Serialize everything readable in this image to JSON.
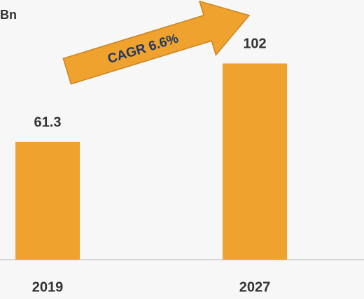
{
  "chart_data": {
    "type": "bar",
    "title": "Bn",
    "categories": [
      "2019",
      "2027"
    ],
    "values": [
      61.3,
      102
    ],
    "color": "#f0a22e",
    "ylim": [
      0,
      135
    ],
    "annotation": "CAGR 6.6%"
  }
}
